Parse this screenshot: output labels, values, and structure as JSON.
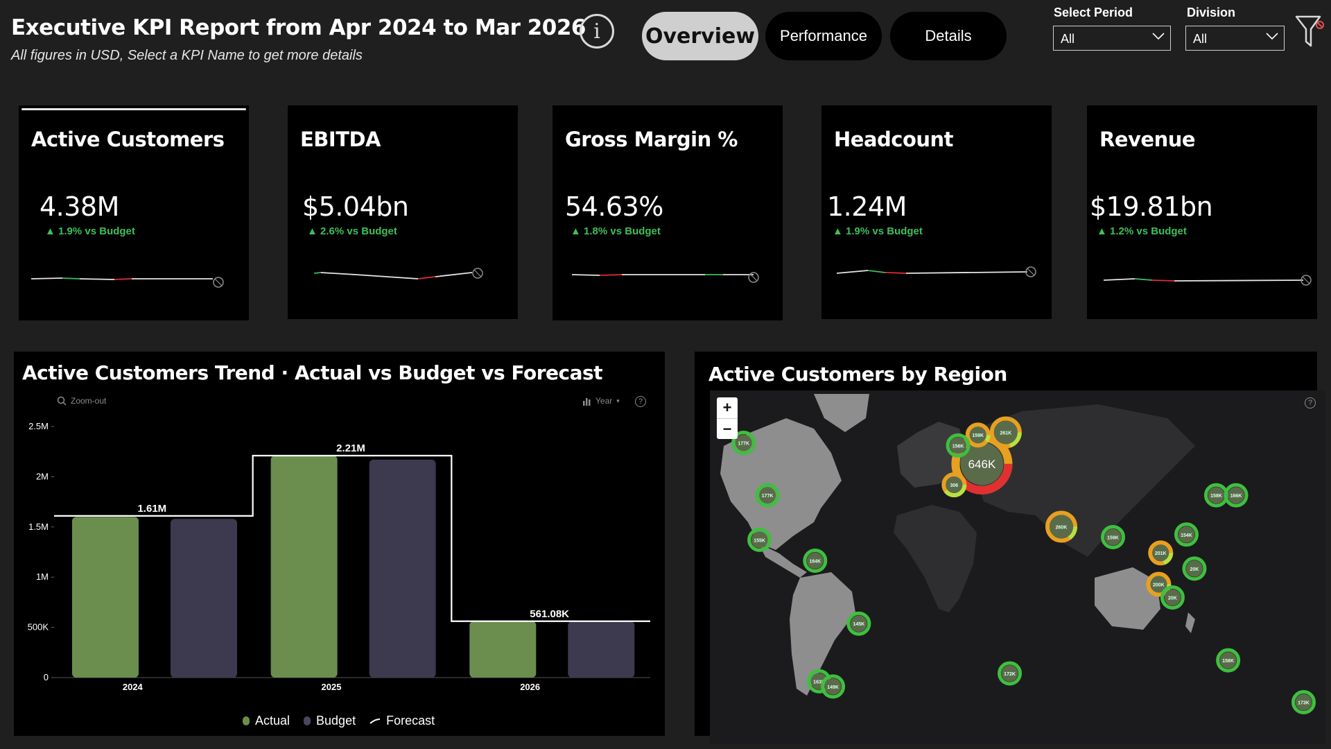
{
  "header": {
    "title": "Executive KPI Report from Apr 2024 to Mar 2026",
    "subtitle": "All figures in USD, Select a KPI Name to get more details",
    "info_glyph": "i"
  },
  "nav": {
    "tabs": [
      {
        "label": "Overview",
        "active": true
      },
      {
        "label": "Performance",
        "active": false
      },
      {
        "label": "Details",
        "active": false
      }
    ]
  },
  "filters": {
    "period": {
      "label": "Select Period",
      "value": "All"
    },
    "division": {
      "label": "Division",
      "value": "All"
    }
  },
  "icons": {
    "info": "info-icon",
    "filter": "filter-funnel-icon",
    "zoom_out": "magnifier-icon",
    "chart_type": "bar-chart-icon",
    "help": "help-icon"
  },
  "colors": {
    "actual": "#6b8e4e",
    "budget": "#3d3a4f",
    "forecast": "#ffffff",
    "positive": "#3fbf5a",
    "negative": "#e03030",
    "bubble": "#3fbf3f"
  },
  "kpis": [
    {
      "name": "Active Customers",
      "value": "4.38M",
      "delta": "1.9% vs Budget",
      "selected": true
    },
    {
      "name": "EBITDA",
      "value": "$5.04bn",
      "delta": "2.6% vs Budget",
      "selected": false
    },
    {
      "name": "Gross Margin %",
      "value": "54.63%",
      "delta": "1.8% vs Budget",
      "selected": false
    },
    {
      "name": "Headcount",
      "value": "1.24M",
      "delta": "1.9% vs Budget",
      "selected": false
    },
    {
      "name": "Revenue",
      "value": "$19.81bn",
      "delta": "1.2% vs Budget",
      "selected": false
    }
  ],
  "trend": {
    "title": "Active Customers Trend · Actual vs Budget vs Forecast",
    "zoom_label": "Zoom-out",
    "year_label": "Year",
    "help_glyph": "?",
    "legend": {
      "actual": "Actual",
      "budget": "Budget",
      "forecast": "Forecast"
    }
  },
  "chart_data": {
    "type": "bar",
    "categories": [
      "2024",
      "2025",
      "2026"
    ],
    "series": [
      {
        "name": "Actual",
        "values": [
          1600000,
          2210000,
          561080
        ]
      },
      {
        "name": "Budget",
        "values": [
          1580000,
          2170000,
          561080
        ]
      },
      {
        "name": "Forecast",
        "values": [
          1610000,
          2210000,
          561080
        ]
      }
    ],
    "data_labels": [
      "1.61M",
      "2.21M",
      "561.08K"
    ],
    "y_ticks": [
      0,
      500000,
      1000000,
      1500000,
      2000000,
      2500000
    ],
    "y_tick_labels": [
      "0",
      "500K",
      "1M",
      "1.5M",
      "2M",
      "2.5M"
    ],
    "ylim": [
      0,
      2500000
    ],
    "grid": false,
    "legend_position": "bottom"
  },
  "region": {
    "title": "Active Customers by Region",
    "zoom_in": "+",
    "zoom_out": "−",
    "help_glyph": "?",
    "bubbles": [
      {
        "label": "646K",
        "lon": 10,
        "lat": 50,
        "pct_good": 0.6
      },
      {
        "label": "261K",
        "lon": 22,
        "lat": 62,
        "pct_good": 0.8
      },
      {
        "label": "159K",
        "lon": 8,
        "lat": 61,
        "pct_good": 0.9
      },
      {
        "label": "156K",
        "lon": -2,
        "lat": 57,
        "pct_good": 1.0
      },
      {
        "label": "306",
        "lon": -4,
        "lat": 42,
        "pct_good": 0.6
      },
      {
        "label": "177K",
        "lon": -110,
        "lat": 58,
        "pct_good": 1.0
      },
      {
        "label": "177K",
        "lon": -98,
        "lat": 38,
        "pct_good": 1.0
      },
      {
        "label": "155K",
        "lon": -102,
        "lat": 21,
        "pct_good": 1.0
      },
      {
        "label": "164K",
        "lon": -74,
        "lat": 13,
        "pct_good": 1.0
      },
      {
        "label": "145K",
        "lon": -52,
        "lat": -11,
        "pct_good": 1.0
      },
      {
        "label": "163K",
        "lon": -72,
        "lat": -33,
        "pct_good": 1.0
      },
      {
        "label": "149K",
        "lon": -65,
        "lat": -35,
        "pct_good": 1.0
      },
      {
        "label": "260K",
        "lon": 50,
        "lat": 26,
        "pct_good": 0.85
      },
      {
        "label": "172K",
        "lon": 24,
        "lat": -30,
        "pct_good": 1.0
      },
      {
        "label": "159K",
        "lon": 76,
        "lat": 22,
        "pct_good": 1.0
      },
      {
        "label": "201K",
        "lon": 100,
        "lat": 16,
        "pct_good": 0.8
      },
      {
        "label": "200K",
        "lon": 99,
        "lat": 4,
        "pct_good": 0.8
      },
      {
        "label": "154K",
        "lon": 113,
        "lat": 23,
        "pct_good": 1.0
      },
      {
        "label": "20K",
        "lon": 117,
        "lat": 10,
        "pct_good": 1.0
      },
      {
        "label": "20K",
        "lon": 106,
        "lat": -1,
        "pct_good": 1.0
      },
      {
        "label": "158K",
        "lon": 128,
        "lat": 38,
        "pct_good": 1.0
      },
      {
        "label": "166K",
        "lon": 138,
        "lat": 38,
        "pct_good": 1.0
      },
      {
        "label": "158K",
        "lon": 134,
        "lat": -25,
        "pct_good": 1.0
      },
      {
        "label": "173K",
        "lon": 172,
        "lat": -41,
        "pct_good": 1.0
      }
    ]
  }
}
